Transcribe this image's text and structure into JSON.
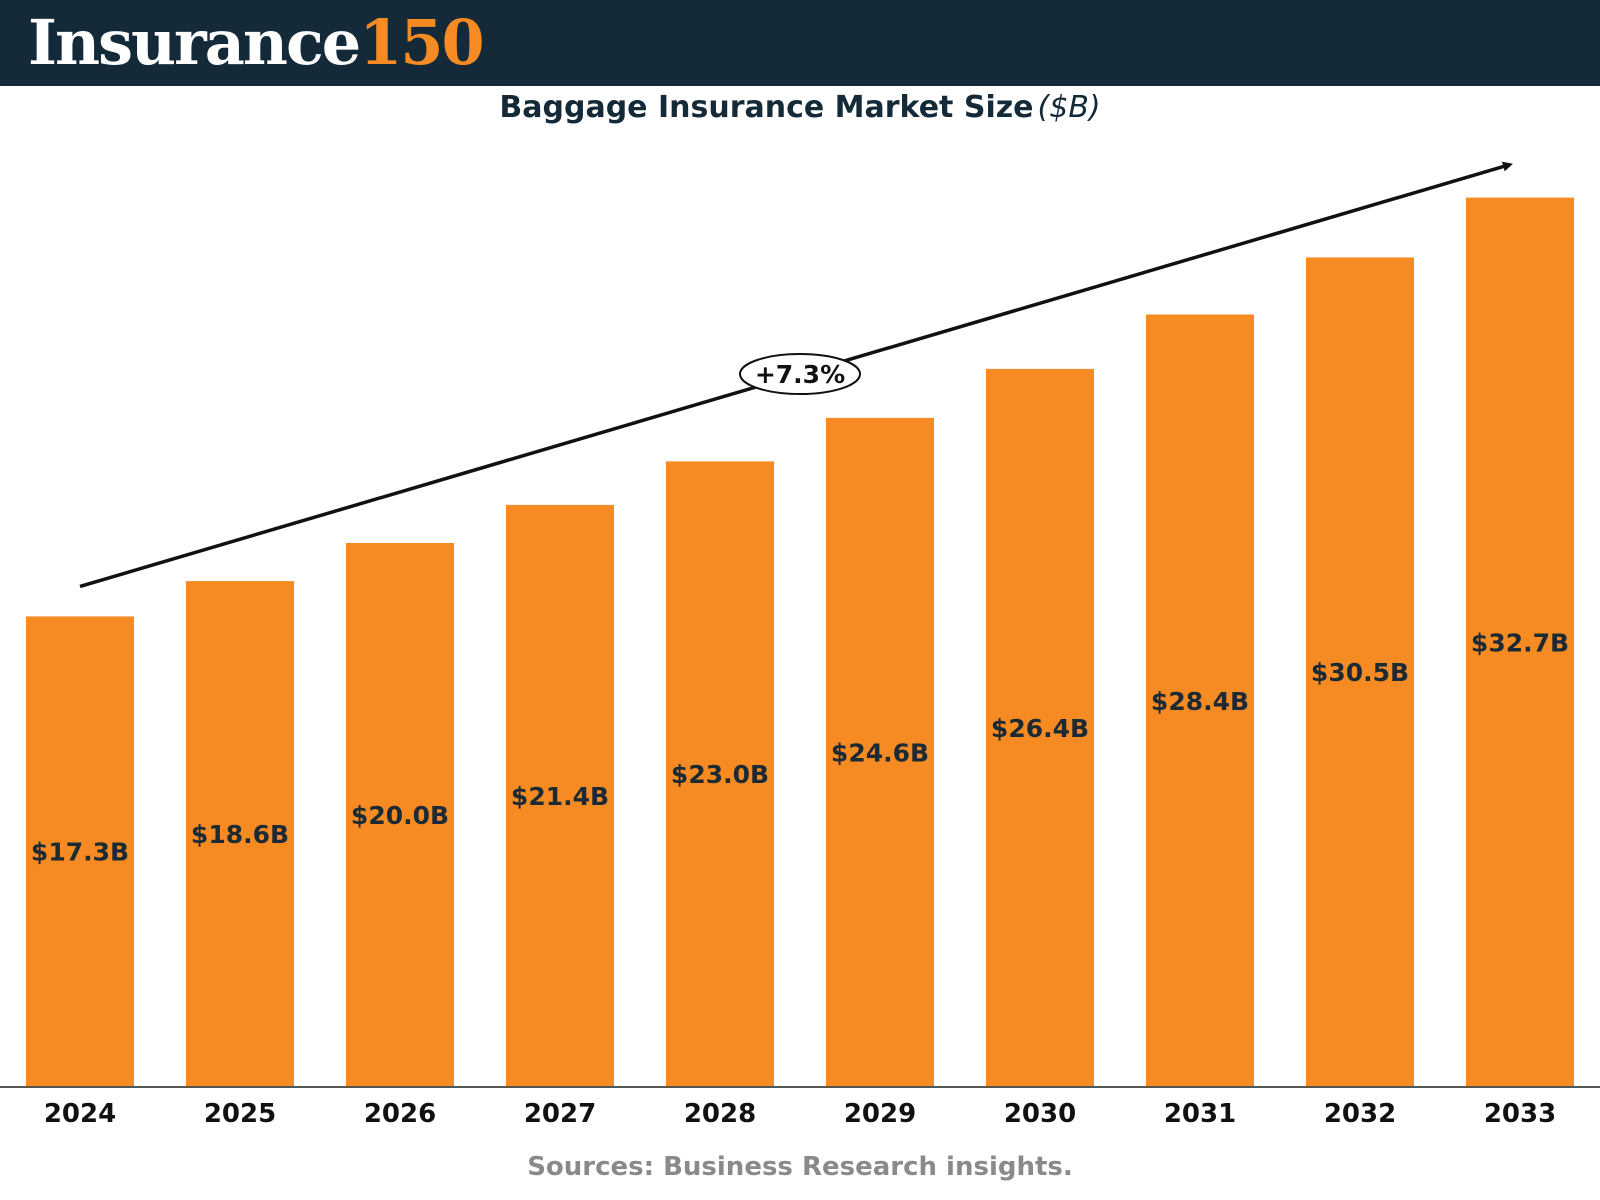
{
  "header": {
    "logo_word": "Insurance",
    "logo_number": "150"
  },
  "colors": {
    "header_bg": "#142a38",
    "bar": "#f68b23",
    "label_text": "#1c2a33",
    "source_text": "#8a8a8a"
  },
  "chart_data": {
    "type": "bar",
    "title": "Baggage Insurance Market Size",
    "title_unit": "($B)",
    "categories": [
      "2024",
      "2025",
      "2026",
      "2027",
      "2028",
      "2029",
      "2030",
      "2031",
      "2032",
      "2033"
    ],
    "values": [
      17.3,
      18.6,
      20.0,
      21.4,
      23.0,
      24.6,
      26.4,
      28.4,
      30.5,
      32.7
    ],
    "value_labels": [
      "$17.3B",
      "$18.6B",
      "$20.0B",
      "$21.4B",
      "$23.0B",
      "$24.6B",
      "$26.4B",
      "$28.4B",
      "$30.5B",
      "$32.7B"
    ],
    "growth_annotation": "+7.3%",
    "xlabel": "",
    "ylabel": "",
    "ylim": [
      0,
      33
    ],
    "grid": false,
    "legend": "none"
  },
  "footer": {
    "source": "Sources: Business Research insights."
  }
}
